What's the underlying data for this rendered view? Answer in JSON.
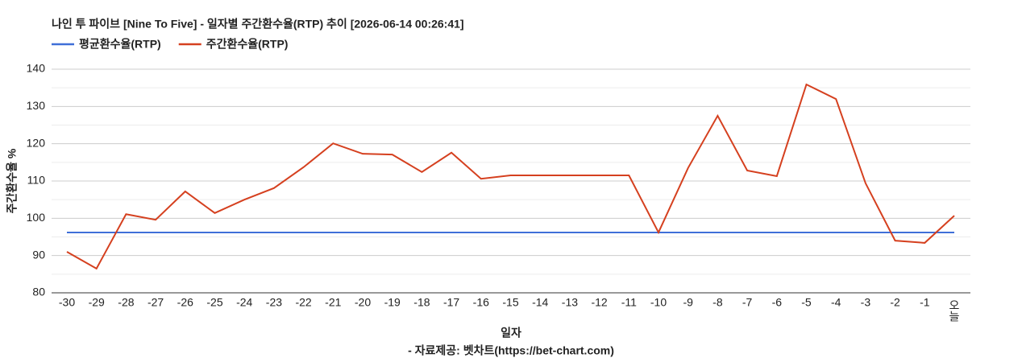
{
  "chart_data": {
    "type": "line",
    "title": "나인 투 파이브 [Nine To Five] - 일자별 주간환수율(RTP) 추이 [2026-06-14 00:26:41]",
    "x_label": "일자",
    "y_label": "주간환수율 %",
    "source": "- 자료제공: 벳차트(https://bet-chart.com)",
    "categories": [
      "-30",
      "-29",
      "-28",
      "-27",
      "-26",
      "-25",
      "-24",
      "-23",
      "-22",
      "-21",
      "-20",
      "-19",
      "-18",
      "-17",
      "-16",
      "-15",
      "-14",
      "-13",
      "-12",
      "-11",
      "-10",
      "-9",
      "-8",
      "-7",
      "-6",
      "-5",
      "-4",
      "-3",
      "-2",
      "-1",
      "오늘"
    ],
    "series": [
      {
        "name": "평균환수율(RTP)",
        "color": "#3f6fd8",
        "values": [
          96.2,
          96.2,
          96.2,
          96.2,
          96.2,
          96.2,
          96.2,
          96.2,
          96.2,
          96.2,
          96.2,
          96.2,
          96.2,
          96.2,
          96.2,
          96.2,
          96.2,
          96.2,
          96.2,
          96.2,
          96.2,
          96.2,
          96.2,
          96.2,
          96.2,
          96.2,
          96.2,
          96.2,
          96.2,
          96.2,
          96.2
        ]
      },
      {
        "name": "주간환수율(RTP)",
        "color": "#d5401f",
        "values": [
          91.0,
          86.5,
          101.1,
          99.6,
          107.2,
          101.4,
          105.0,
          108.1,
          113.7,
          120.1,
          117.3,
          117.1,
          112.4,
          117.6,
          110.6,
          111.5,
          111.5,
          111.5,
          111.5,
          111.5,
          96.2,
          113.5,
          127.5,
          112.8,
          111.3,
          135.9,
          132.0,
          109.4,
          94.0,
          93.4,
          100.7
        ]
      }
    ],
    "ylim": [
      80,
      140
    ],
    "yticks": [
      80,
      90,
      100,
      110,
      120,
      130,
      140
    ],
    "minor_yticks": [
      85,
      95,
      105,
      115,
      125,
      135
    ],
    "grid": true,
    "legend": "top-left"
  }
}
